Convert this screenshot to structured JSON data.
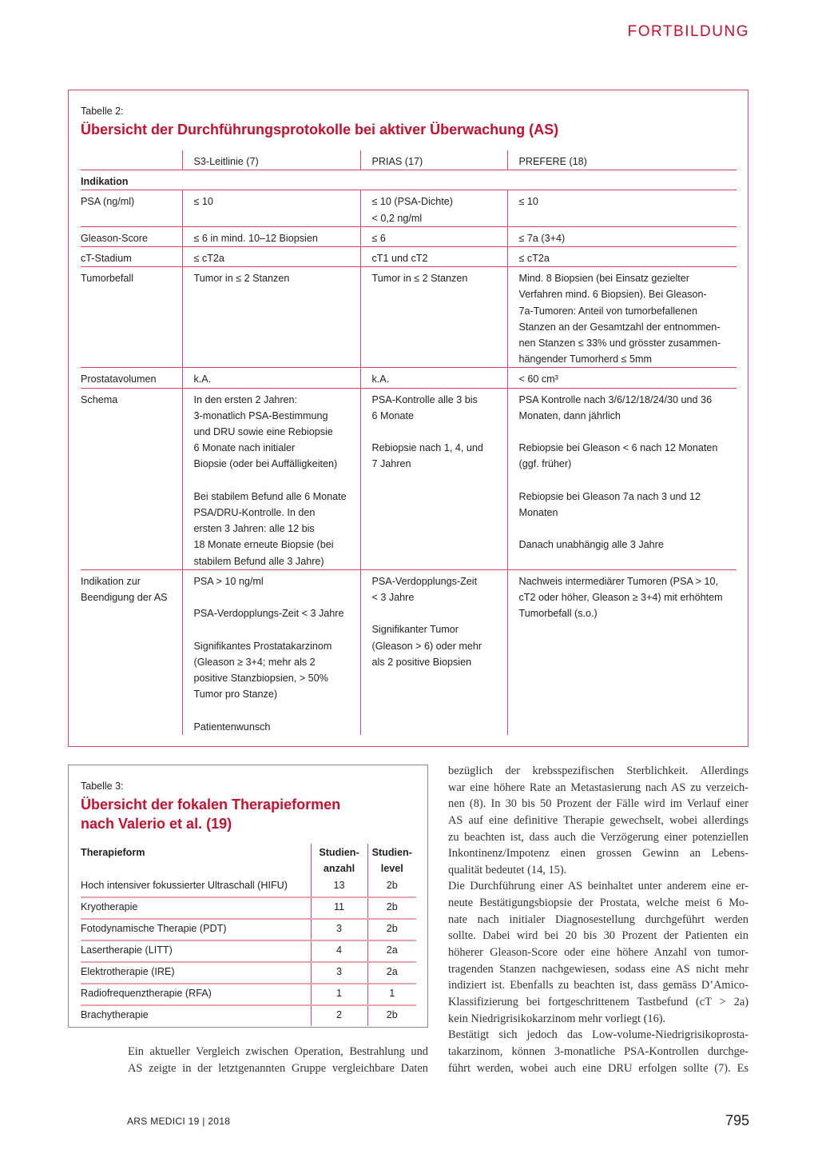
{
  "header": {
    "section": "FORTBILDUNG"
  },
  "table2": {
    "caption": "Tabelle 2:",
    "title": "Übersicht der Durchführungsprotokolle bei aktiver Überwachung (AS)",
    "columns": [
      "",
      "S3-Leitlinie (7)",
      "PRIAS (17)",
      "PREFERE (18)"
    ],
    "section_label": "Indikation",
    "rows": [
      {
        "label": "PSA (ng/ml)",
        "cells": [
          "≤ 10",
          "≤ 10 (PSA-Dichte)\n< 0,2 ng/ml",
          "≤ 10"
        ]
      },
      {
        "label": "Gleason-Score",
        "cells": [
          "≤ 6 in mind. 10–12 Biopsien",
          "≤ 6",
          "≤ 7a (3+4)"
        ]
      },
      {
        "label": "cT-Stadium",
        "cells": [
          "≤ cT2a",
          "cT1 und cT2",
          "≤ cT2a"
        ]
      },
      {
        "label": "Tumorbefall",
        "cells": [
          "Tumor in ≤ 2 Stanzen",
          "Tumor in ≤ 2 Stanzen",
          "Mind. 8 Biopsien (bei Einsatz gezielter\nVerfahren mind. 6 Biopsien). Bei Gleason-\n7a-Tumoren: Anteil von tumorbefallenen\nStanzen an der  Gesamtzahl der entnommen-\nnen Stanzen ≤ 33% und grösster zusammen-\nhängender Tumorherd ≤ 5mm"
        ]
      },
      {
        "label": "Prostatavolumen",
        "cells": [
          "k.A.",
          "k.A.",
          "< 60 cm³"
        ]
      },
      {
        "label": "Schema",
        "cells": [
          "In den ersten 2 Jahren:\n3-monatlich PSA-Bestimmung\nund DRU sowie eine Rebiopsie\n6 Monate nach initialer\nBiopsie (oder bei Auffälligkeiten)\n\nBei stabilem Befund alle 6 Monate\nPSA/DRU-Kontrolle. In den\nersten 3 Jahren: alle 12 bis\n18 Monate erneute Biopsie (bei\nstabilem Befund alle 3 Jahre)",
          "PSA-Kontrolle alle 3 bis\n6 Monate\n\nRebiopsie nach 1, 4, und\n7 Jahren",
          "PSA Kontrolle nach 3/6/12/18/24/30 und 36\nMonaten, dann jährlich\n\nRebiopsie bei Gleason < 6 nach 12 Monaten\n(ggf. früher)\n\nRebiopsie bei Gleason 7a nach 3 und 12\nMonaten\n\nDanach unabhängig alle 3 Jahre"
        ]
      },
      {
        "label": "Indikation zur\nBeendigung der AS",
        "cells": [
          "PSA > 10 ng/ml\n\nPSA-Verdopplungs-Zeit < 3 Jahre\n\nSignifikantes Prostatakarzinom\n(Gleason ≥ 3+4; mehr als 2\npositive Stanzbiopsien, > 50%\nTumor pro Stanze)\n\nPatientenwunsch",
          "PSA-Verdopplungs-Zeit\n< 3 Jahre\n\nSignifikanter Tumor\n(Gleason > 6) oder mehr\nals 2 positive Biopsien",
          "Nachweis intermediärer Tumoren (PSA > 10,\ncT2 oder höher, Gleason ≥ 3+4) mit erhöhtem\nTumorbefall (s.o.)"
        ]
      }
    ]
  },
  "table3": {
    "caption": "Tabelle 3:",
    "title_lines": [
      "Übersicht der fokalen Therapieformen",
      "nach Valerio et al. (19)"
    ],
    "columns": [
      "Therapieform",
      "Studien-\nanzahl",
      "Studien-\nlevel"
    ],
    "rows": [
      [
        "Hoch intensiver fokussierter Ultraschall (HIFU)",
        "13",
        "2b"
      ],
      [
        "Kryotherapie",
        "11",
        "2b"
      ],
      [
        "Fotodynamische Therapie (PDT)",
        "3",
        "2b"
      ],
      [
        "Lasertherapie (LITT)",
        "4",
        "2a"
      ],
      [
        "Elektrotherapie (IRE)",
        "3",
        "2a"
      ],
      [
        "Radiofrequenztherapie (RFA)",
        "1",
        "1"
      ],
      [
        "Brachytherapie",
        "2",
        "2b"
      ]
    ]
  },
  "body_left": [
    "Ein aktueller Vergleich zwischen Operation, Bestrahlung und",
    "AS zeigte in der letztgenannten Gruppe vergleichbare Daten"
  ],
  "body_right": [
    "bezüglich der krebsspezifischen Sterblichkeit. Allerdings",
    "war eine höhere Rate an Metastasierung nach AS zu verzeich-",
    "nen (8). In 30 bis 50 Prozent der Fälle wird im Verlauf einer",
    "AS auf eine definitive Therapie gewechselt, wobei allerdings",
    "zu beachten ist, dass auch die Verzögerung einer potenziellen",
    "Inkontinenz/Impotenz einen grossen Gewinn an Lebens-",
    "qualität bedeutet (14, 15).",
    "Die Durchführung einer AS beinhaltet unter anderem eine er-",
    "neute Bestätigungsbiopsie der Prostata, welche meist 6 Mo-",
    "nate nach initialer Diagnosestellung durchgeführt werden",
    "sollte. Dabei wird bei 20 bis 30 Prozent der Patienten ein",
    "höherer Gleason-Score oder eine höhere Anzahl von tumor-",
    "tragenden Stanzen nachgewiesen, sodass eine AS nicht mehr",
    "indiziert ist. Ebenfalls zu beachten ist, dass gemäss D’Amico-",
    "Klassifizierung bei fortgeschrittenem Tastbefund (cT > 2a)",
    "kein Niedrigrisikokarzinom mehr vorliegt (16).",
    "Bestätigt sich jedoch das Low-volume-Niedrigrisikoprosta-",
    "takarzinom, können 3-monatliche PSA-Kontrollen durchge-",
    "führt werden, wobei auch eine DRU erfolgen sollte (7). Es"
  ],
  "footer": {
    "journal": "ARS MEDICI 19 | 2018",
    "page": "795"
  },
  "colors": {
    "accent": "#c8102e",
    "rule": "#d9495e",
    "light_rule": "#e9a3ad"
  }
}
